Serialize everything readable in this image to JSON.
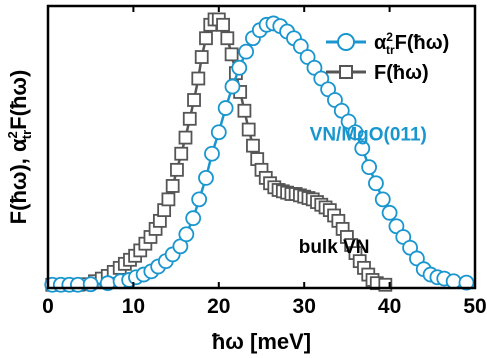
{
  "chart_data": {
    "type": "line",
    "xlabel": "ħω [meV]",
    "ylabel": "F(ħω), α²trF(ħω)",
    "ylabel_parts": {
      "a": "F(ħω), α",
      "sup": "2",
      "sub": "tr",
      "b": "F(ħω)"
    },
    "xlim": [
      0,
      50
    ],
    "ylim": [
      0,
      1.05
    ],
    "x_ticks": [
      0,
      10,
      20,
      30,
      40,
      50
    ],
    "y_ticks_labeled": false,
    "grid": false,
    "legend_position": "top-right",
    "legend": [
      {
        "name_parts": {
          "a": "α",
          "sup": "2",
          "sub": "tr",
          "b": "F(ħω)"
        },
        "marker": "circle",
        "color": "#1a96cf"
      },
      {
        "name_parts": {
          "a": "F(ħω)",
          "sup": "",
          "sub": "",
          "b": ""
        },
        "marker": "square",
        "color": "#555555"
      }
    ],
    "annotations": [
      {
        "text": "VN/MgO(011)",
        "x": 37.5,
        "y": 0.55,
        "color": "#1a96cf"
      },
      {
        "text": "bulk VN",
        "x": 33.5,
        "y": 0.13,
        "color": "#000000"
      }
    ],
    "series": [
      {
        "name": "α²trF(ħω)",
        "color": "#1a96cf",
        "marker": "circle",
        "points": [
          [
            0.5,
            0.012
          ],
          [
            1.5,
            0.012
          ],
          [
            2.5,
            0.012
          ],
          [
            3.5,
            0.012
          ],
          [
            5,
            0.014
          ],
          [
            7,
            0.018
          ],
          [
            8.5,
            0.025
          ],
          [
            9.5,
            0.03
          ],
          [
            10.3,
            0.04
          ],
          [
            11.2,
            0.05
          ],
          [
            12.1,
            0.062
          ],
          [
            12.9,
            0.08
          ],
          [
            13.8,
            0.1
          ],
          [
            14.6,
            0.125
          ],
          [
            15.5,
            0.155
          ],
          [
            16.2,
            0.2
          ],
          [
            17.0,
            0.26
          ],
          [
            17.7,
            0.33
          ],
          [
            18.5,
            0.41
          ],
          [
            19.2,
            0.5
          ],
          [
            20.0,
            0.58
          ],
          [
            20.8,
            0.67
          ],
          [
            21.6,
            0.75
          ],
          [
            22.4,
            0.82
          ],
          [
            23.2,
            0.88
          ],
          [
            24.0,
            0.93
          ],
          [
            24.8,
            0.96
          ],
          [
            25.6,
            0.98
          ],
          [
            26.4,
            0.985
          ],
          [
            27.2,
            0.975
          ],
          [
            28.0,
            0.955
          ],
          [
            28.8,
            0.93
          ],
          [
            29.6,
            0.9
          ],
          [
            30.4,
            0.86
          ],
          [
            31.2,
            0.82
          ],
          [
            32.0,
            0.78
          ],
          [
            32.8,
            0.74
          ],
          [
            33.6,
            0.7
          ],
          [
            34.4,
            0.66
          ],
          [
            35.2,
            0.62
          ],
          [
            36.0,
            0.58
          ],
          [
            36.8,
            0.52
          ],
          [
            37.6,
            0.45
          ],
          [
            38.4,
            0.39
          ],
          [
            39.2,
            0.33
          ],
          [
            40.0,
            0.28
          ],
          [
            40.8,
            0.23
          ],
          [
            41.6,
            0.19
          ],
          [
            42.4,
            0.15
          ],
          [
            43.2,
            0.11
          ],
          [
            44.0,
            0.07
          ],
          [
            44.8,
            0.05
          ],
          [
            45.6,
            0.04
          ],
          [
            46.4,
            0.035
          ],
          [
            47.5,
            0.025
          ],
          [
            49.0,
            0.02
          ]
        ]
      },
      {
        "name": "F(ħω)",
        "color": "#555555",
        "marker": "square",
        "points": [
          [
            0.5,
            0.012
          ],
          [
            1.5,
            0.012
          ],
          [
            2.5,
            0.012
          ],
          [
            3.5,
            0.012
          ],
          [
            4.5,
            0.014
          ],
          [
            5.5,
            0.025
          ],
          [
            6.3,
            0.035
          ],
          [
            7.0,
            0.045
          ],
          [
            7.7,
            0.06
          ],
          [
            8.4,
            0.075
          ],
          [
            9.0,
            0.09
          ],
          [
            9.6,
            0.105
          ],
          [
            10.2,
            0.12
          ],
          [
            10.8,
            0.14
          ],
          [
            11.4,
            0.165
          ],
          [
            12.0,
            0.19
          ],
          [
            12.6,
            0.22
          ],
          [
            13.1,
            0.25
          ],
          [
            13.6,
            0.29
          ],
          [
            14.1,
            0.33
          ],
          [
            14.6,
            0.38
          ],
          [
            15.1,
            0.44
          ],
          [
            15.6,
            0.5
          ],
          [
            16.1,
            0.56
          ],
          [
            16.6,
            0.63
          ],
          [
            17.1,
            0.7
          ],
          [
            17.6,
            0.78
          ],
          [
            18.0,
            0.86
          ],
          [
            18.5,
            0.93
          ],
          [
            19.0,
            0.98
          ],
          [
            19.5,
            1.0
          ],
          [
            20.0,
            1.0
          ],
          [
            20.5,
            0.98
          ],
          [
            21.0,
            0.93
          ],
          [
            21.5,
            0.87
          ],
          [
            22.0,
            0.8
          ],
          [
            22.5,
            0.73
          ],
          [
            23.0,
            0.66
          ],
          [
            23.5,
            0.59
          ],
          [
            24.0,
            0.53
          ],
          [
            24.5,
            0.48
          ],
          [
            25.0,
            0.44
          ],
          [
            25.5,
            0.41
          ],
          [
            26.0,
            0.39
          ],
          [
            26.5,
            0.375
          ],
          [
            27.0,
            0.365
          ],
          [
            27.5,
            0.36
          ],
          [
            28.0,
            0.355
          ],
          [
            28.5,
            0.35
          ],
          [
            29.0,
            0.35
          ],
          [
            29.5,
            0.345
          ],
          [
            30.0,
            0.34
          ],
          [
            30.5,
            0.335
          ],
          [
            31.0,
            0.33
          ],
          [
            31.5,
            0.32
          ],
          [
            32.0,
            0.31
          ],
          [
            32.5,
            0.3
          ],
          [
            33.0,
            0.29
          ],
          [
            33.5,
            0.27
          ],
          [
            34.0,
            0.25
          ],
          [
            34.5,
            0.22
          ],
          [
            35.0,
            0.19
          ],
          [
            35.5,
            0.16
          ],
          [
            36.0,
            0.13
          ],
          [
            36.5,
            0.1
          ],
          [
            37.0,
            0.075
          ],
          [
            37.5,
            0.05
          ],
          [
            38.0,
            0.03
          ],
          [
            38.5,
            0.018
          ],
          [
            39.5,
            0.012
          ]
        ]
      }
    ]
  }
}
